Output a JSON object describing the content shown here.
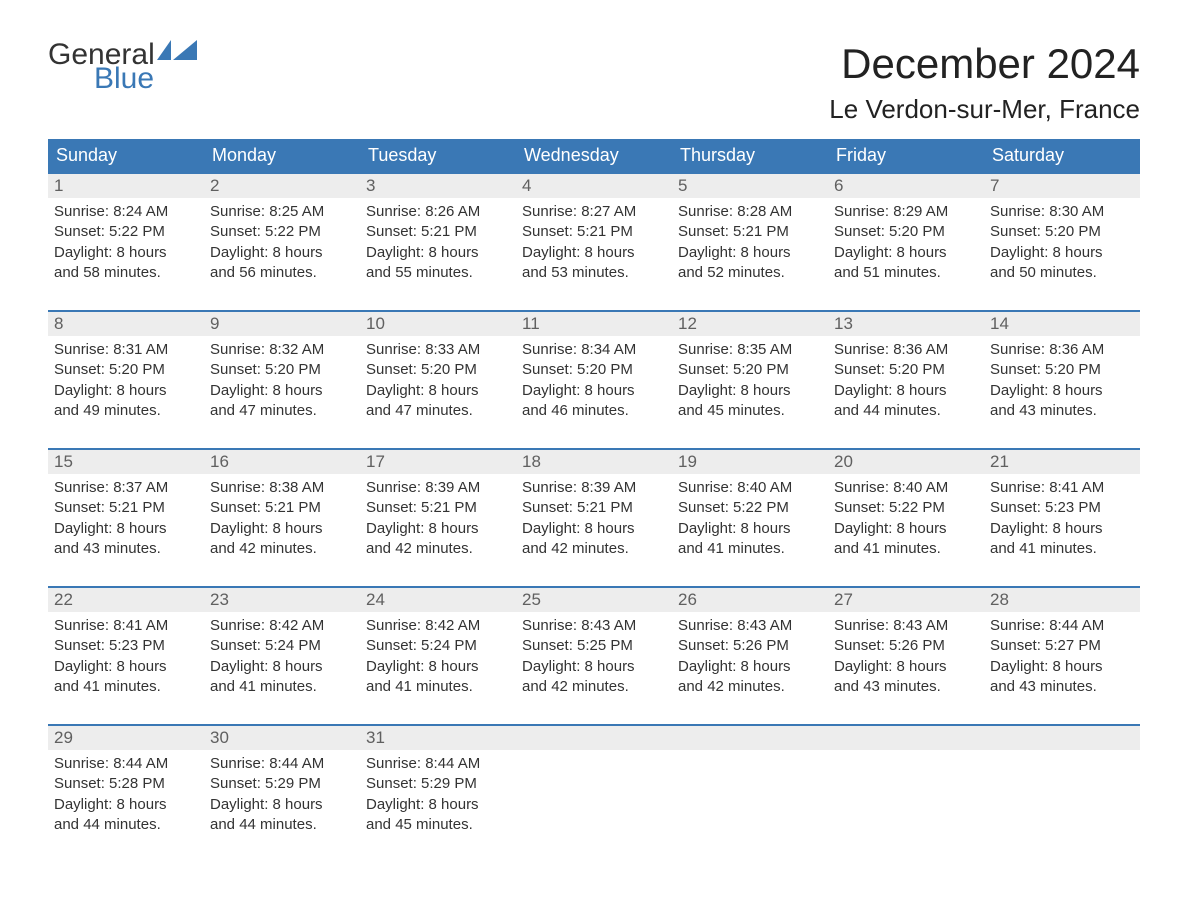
{
  "brand": {
    "general": "General",
    "blue": "Blue",
    "flag_color": "#3a78b5"
  },
  "title": "December 2024",
  "location": "Le Verdon-sur-Mer, France",
  "header_bg": "#3a78b5",
  "header_text_color": "#ffffff",
  "daynum_bg": "#ededed",
  "border_color": "#3a78b5",
  "weekdays": [
    "Sunday",
    "Monday",
    "Tuesday",
    "Wednesday",
    "Thursday",
    "Friday",
    "Saturday"
  ],
  "weeks": [
    [
      {
        "num": "1",
        "sunrise": "Sunrise: 8:24 AM",
        "sunset": "Sunset: 5:22 PM",
        "day1": "Daylight: 8 hours",
        "day2": "and 58 minutes."
      },
      {
        "num": "2",
        "sunrise": "Sunrise: 8:25 AM",
        "sunset": "Sunset: 5:22 PM",
        "day1": "Daylight: 8 hours",
        "day2": "and 56 minutes."
      },
      {
        "num": "3",
        "sunrise": "Sunrise: 8:26 AM",
        "sunset": "Sunset: 5:21 PM",
        "day1": "Daylight: 8 hours",
        "day2": "and 55 minutes."
      },
      {
        "num": "4",
        "sunrise": "Sunrise: 8:27 AM",
        "sunset": "Sunset: 5:21 PM",
        "day1": "Daylight: 8 hours",
        "day2": "and 53 minutes."
      },
      {
        "num": "5",
        "sunrise": "Sunrise: 8:28 AM",
        "sunset": "Sunset: 5:21 PM",
        "day1": "Daylight: 8 hours",
        "day2": "and 52 minutes."
      },
      {
        "num": "6",
        "sunrise": "Sunrise: 8:29 AM",
        "sunset": "Sunset: 5:20 PM",
        "day1": "Daylight: 8 hours",
        "day2": "and 51 minutes."
      },
      {
        "num": "7",
        "sunrise": "Sunrise: 8:30 AM",
        "sunset": "Sunset: 5:20 PM",
        "day1": "Daylight: 8 hours",
        "day2": "and 50 minutes."
      }
    ],
    [
      {
        "num": "8",
        "sunrise": "Sunrise: 8:31 AM",
        "sunset": "Sunset: 5:20 PM",
        "day1": "Daylight: 8 hours",
        "day2": "and 49 minutes."
      },
      {
        "num": "9",
        "sunrise": "Sunrise: 8:32 AM",
        "sunset": "Sunset: 5:20 PM",
        "day1": "Daylight: 8 hours",
        "day2": "and 47 minutes."
      },
      {
        "num": "10",
        "sunrise": "Sunrise: 8:33 AM",
        "sunset": "Sunset: 5:20 PM",
        "day1": "Daylight: 8 hours",
        "day2": "and 47 minutes."
      },
      {
        "num": "11",
        "sunrise": "Sunrise: 8:34 AM",
        "sunset": "Sunset: 5:20 PM",
        "day1": "Daylight: 8 hours",
        "day2": "and 46 minutes."
      },
      {
        "num": "12",
        "sunrise": "Sunrise: 8:35 AM",
        "sunset": "Sunset: 5:20 PM",
        "day1": "Daylight: 8 hours",
        "day2": "and 45 minutes."
      },
      {
        "num": "13",
        "sunrise": "Sunrise: 8:36 AM",
        "sunset": "Sunset: 5:20 PM",
        "day1": "Daylight: 8 hours",
        "day2": "and 44 minutes."
      },
      {
        "num": "14",
        "sunrise": "Sunrise: 8:36 AM",
        "sunset": "Sunset: 5:20 PM",
        "day1": "Daylight: 8 hours",
        "day2": "and 43 minutes."
      }
    ],
    [
      {
        "num": "15",
        "sunrise": "Sunrise: 8:37 AM",
        "sunset": "Sunset: 5:21 PM",
        "day1": "Daylight: 8 hours",
        "day2": "and 43 minutes."
      },
      {
        "num": "16",
        "sunrise": "Sunrise: 8:38 AM",
        "sunset": "Sunset: 5:21 PM",
        "day1": "Daylight: 8 hours",
        "day2": "and 42 minutes."
      },
      {
        "num": "17",
        "sunrise": "Sunrise: 8:39 AM",
        "sunset": "Sunset: 5:21 PM",
        "day1": "Daylight: 8 hours",
        "day2": "and 42 minutes."
      },
      {
        "num": "18",
        "sunrise": "Sunrise: 8:39 AM",
        "sunset": "Sunset: 5:21 PM",
        "day1": "Daylight: 8 hours",
        "day2": "and 42 minutes."
      },
      {
        "num": "19",
        "sunrise": "Sunrise: 8:40 AM",
        "sunset": "Sunset: 5:22 PM",
        "day1": "Daylight: 8 hours",
        "day2": "and 41 minutes."
      },
      {
        "num": "20",
        "sunrise": "Sunrise: 8:40 AM",
        "sunset": "Sunset: 5:22 PM",
        "day1": "Daylight: 8 hours",
        "day2": "and 41 minutes."
      },
      {
        "num": "21",
        "sunrise": "Sunrise: 8:41 AM",
        "sunset": "Sunset: 5:23 PM",
        "day1": "Daylight: 8 hours",
        "day2": "and 41 minutes."
      }
    ],
    [
      {
        "num": "22",
        "sunrise": "Sunrise: 8:41 AM",
        "sunset": "Sunset: 5:23 PM",
        "day1": "Daylight: 8 hours",
        "day2": "and 41 minutes."
      },
      {
        "num": "23",
        "sunrise": "Sunrise: 8:42 AM",
        "sunset": "Sunset: 5:24 PM",
        "day1": "Daylight: 8 hours",
        "day2": "and 41 minutes."
      },
      {
        "num": "24",
        "sunrise": "Sunrise: 8:42 AM",
        "sunset": "Sunset: 5:24 PM",
        "day1": "Daylight: 8 hours",
        "day2": "and 41 minutes."
      },
      {
        "num": "25",
        "sunrise": "Sunrise: 8:43 AM",
        "sunset": "Sunset: 5:25 PM",
        "day1": "Daylight: 8 hours",
        "day2": "and 42 minutes."
      },
      {
        "num": "26",
        "sunrise": "Sunrise: 8:43 AM",
        "sunset": "Sunset: 5:26 PM",
        "day1": "Daylight: 8 hours",
        "day2": "and 42 minutes."
      },
      {
        "num": "27",
        "sunrise": "Sunrise: 8:43 AM",
        "sunset": "Sunset: 5:26 PM",
        "day1": "Daylight: 8 hours",
        "day2": "and 43 minutes."
      },
      {
        "num": "28",
        "sunrise": "Sunrise: 8:44 AM",
        "sunset": "Sunset: 5:27 PM",
        "day1": "Daylight: 8 hours",
        "day2": "and 43 minutes."
      }
    ],
    [
      {
        "num": "29",
        "sunrise": "Sunrise: 8:44 AM",
        "sunset": "Sunset: 5:28 PM",
        "day1": "Daylight: 8 hours",
        "day2": "and 44 minutes."
      },
      {
        "num": "30",
        "sunrise": "Sunrise: 8:44 AM",
        "sunset": "Sunset: 5:29 PM",
        "day1": "Daylight: 8 hours",
        "day2": "and 44 minutes."
      },
      {
        "num": "31",
        "sunrise": "Sunrise: 8:44 AM",
        "sunset": "Sunset: 5:29 PM",
        "day1": "Daylight: 8 hours",
        "day2": "and 45 minutes."
      },
      {
        "empty": true
      },
      {
        "empty": true
      },
      {
        "empty": true
      },
      {
        "empty": true
      }
    ]
  ]
}
